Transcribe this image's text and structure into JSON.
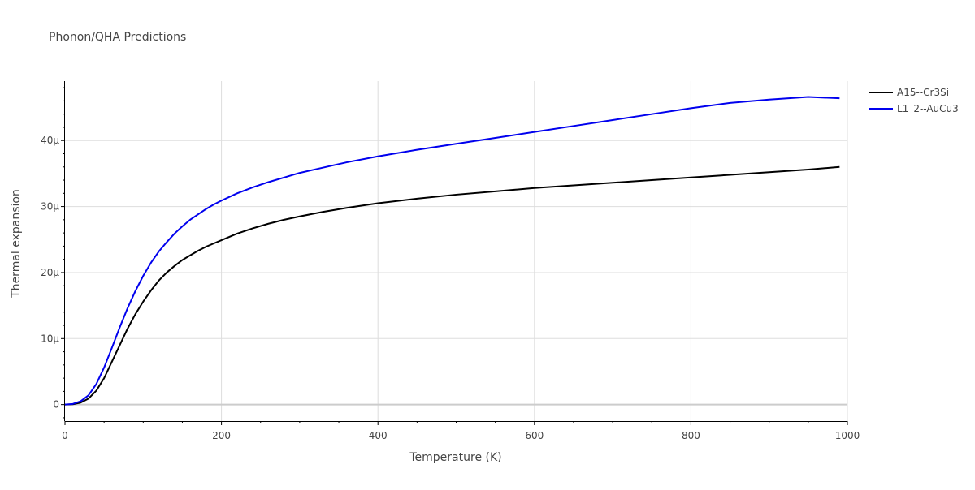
{
  "chart_data": {
    "type": "line",
    "title": "Phonon/QHA Predictions",
    "xlabel": "Temperature (K)",
    "ylabel": "Thermal expansion",
    "xlim": [
      0,
      1000
    ],
    "ylim": [
      -2.5e-06,
      4.9e-05
    ],
    "x_ticks": [
      0,
      200,
      400,
      600,
      800,
      1000
    ],
    "x_tick_labels": [
      "0",
      "200",
      "400",
      "600",
      "800",
      "1000"
    ],
    "y_ticks": [
      0,
      1e-05,
      2e-05,
      3e-05,
      4e-05
    ],
    "y_tick_labels": [
      "0",
      "10μ",
      "20μ",
      "30μ",
      "40μ"
    ],
    "grid": true,
    "legend_position": "top-right",
    "series": [
      {
        "name": "A15--Cr3Si",
        "color": "#000000",
        "x": [
          0,
          10,
          20,
          30,
          40,
          50,
          60,
          70,
          80,
          90,
          100,
          110,
          120,
          130,
          140,
          150,
          160,
          170,
          180,
          190,
          200,
          220,
          240,
          260,
          280,
          300,
          330,
          360,
          400,
          450,
          500,
          550,
          600,
          650,
          700,
          750,
          800,
          850,
          900,
          950,
          990
        ],
        "y": [
          0,
          5e-08,
          3e-07,
          9e-07,
          2.1e-06,
          4e-06,
          6.5e-06,
          9e-06,
          1.15e-05,
          1.37e-05,
          1.56e-05,
          1.73e-05,
          1.88e-05,
          2e-05,
          2.1e-05,
          2.19e-05,
          2.26e-05,
          2.33e-05,
          2.39e-05,
          2.44e-05,
          2.49e-05,
          2.59e-05,
          2.67e-05,
          2.74e-05,
          2.8e-05,
          2.85e-05,
          2.92e-05,
          2.98e-05,
          3.05e-05,
          3.12e-05,
          3.18e-05,
          3.23e-05,
          3.28e-05,
          3.32e-05,
          3.36e-05,
          3.4e-05,
          3.44e-05,
          3.48e-05,
          3.52e-05,
          3.56e-05,
          3.6e-05
        ]
      },
      {
        "name": "L1_2--AuCu3",
        "color": "#0000ee",
        "x": [
          0,
          10,
          20,
          30,
          40,
          50,
          60,
          70,
          80,
          90,
          100,
          110,
          120,
          130,
          140,
          150,
          160,
          170,
          180,
          190,
          200,
          220,
          240,
          260,
          280,
          300,
          330,
          360,
          400,
          450,
          500,
          550,
          600,
          650,
          700,
          750,
          800,
          850,
          900,
          950,
          990
        ],
        "y": [
          0,
          1e-07,
          5e-07,
          1.4e-06,
          3.1e-06,
          5.6e-06,
          8.6e-06,
          1.17e-05,
          1.46e-05,
          1.72e-05,
          1.95e-05,
          2.15e-05,
          2.32e-05,
          2.46e-05,
          2.59e-05,
          2.7e-05,
          2.8e-05,
          2.88e-05,
          2.96e-05,
          3.03e-05,
          3.09e-05,
          3.2e-05,
          3.29e-05,
          3.37e-05,
          3.44e-05,
          3.51e-05,
          3.59e-05,
          3.67e-05,
          3.76e-05,
          3.86e-05,
          3.95e-05,
          4.04e-05,
          4.13e-05,
          4.22e-05,
          4.31e-05,
          4.4e-05,
          4.49e-05,
          4.57e-05,
          4.62e-05,
          4.66e-05,
          4.64e-05
        ]
      }
    ]
  }
}
